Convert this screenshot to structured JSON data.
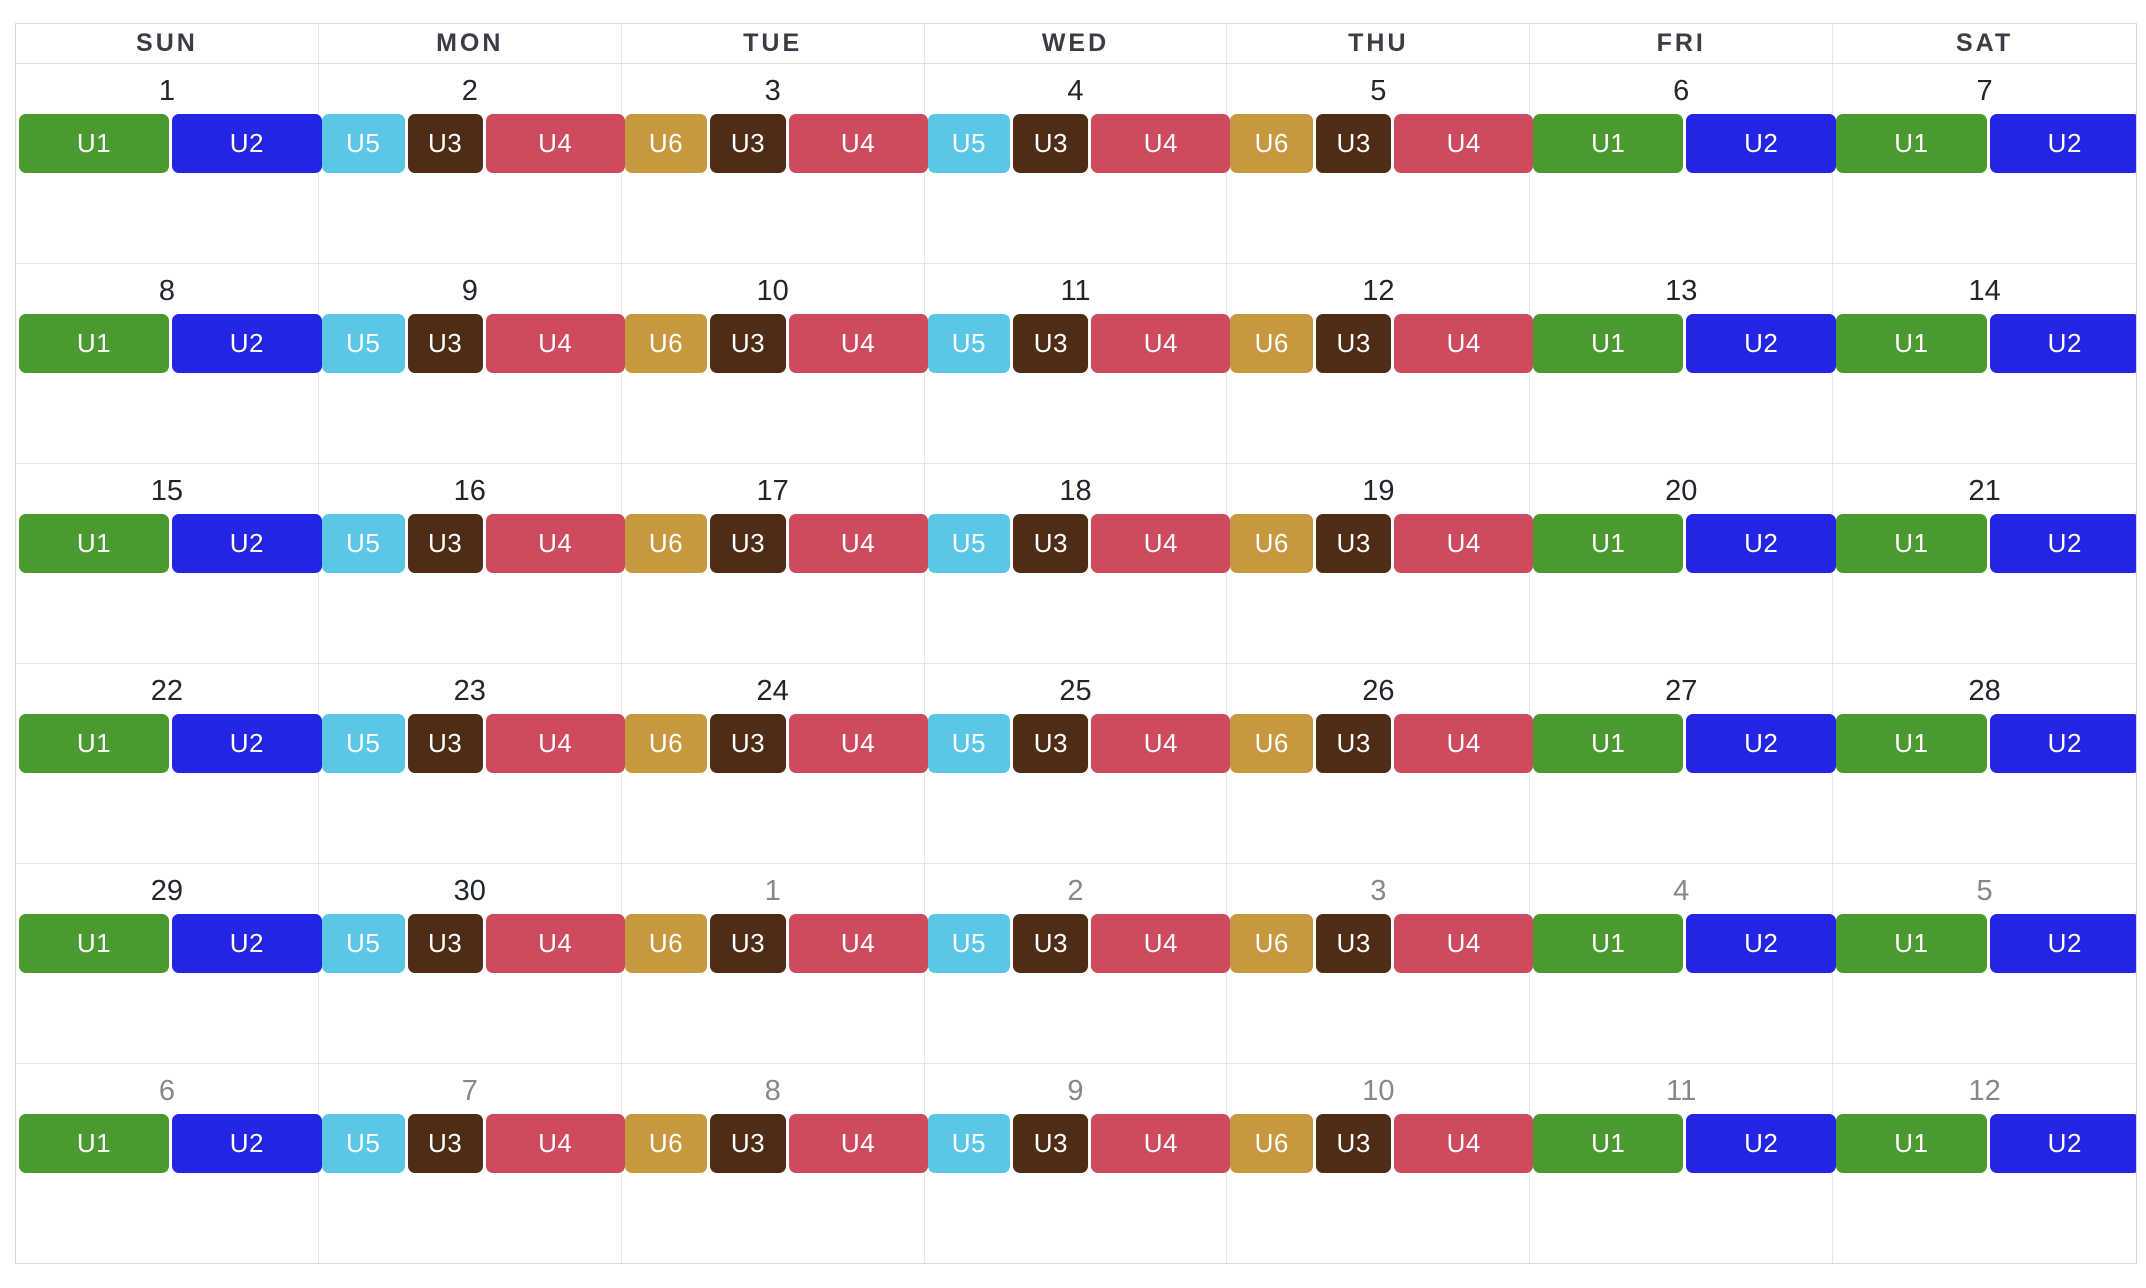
{
  "weekday_headers": [
    "SUN",
    "MON",
    "TUE",
    "WED",
    "THU",
    "FRI",
    "SAT"
  ],
  "event_colors": {
    "U1": "#4a9a2f",
    "U2": "#2324e4",
    "U3": "#4f2c16",
    "U4": "#ce4a5f",
    "U5": "#5ac7e7",
    "U6": "#c7993e"
  },
  "event_patterns": {
    "SUN": [
      {
        "label": "U1",
        "flex": 1
      },
      {
        "label": "U2",
        "flex": 1
      }
    ],
    "MON": [
      {
        "label": "U5",
        "flex": 1.1
      },
      {
        "label": "U3",
        "flex": 1
      },
      {
        "label": "U4",
        "flex": 1.85
      }
    ],
    "TUE": [
      {
        "label": "U6",
        "flex": 1.1
      },
      {
        "label": "U3",
        "flex": 1
      },
      {
        "label": "U4",
        "flex": 1.85
      }
    ],
    "WED": [
      {
        "label": "U5",
        "flex": 1.1
      },
      {
        "label": "U3",
        "flex": 1
      },
      {
        "label": "U4",
        "flex": 1.85
      }
    ],
    "THU": [
      {
        "label": "U6",
        "flex": 1.1
      },
      {
        "label": "U3",
        "flex": 1
      },
      {
        "label": "U4",
        "flex": 1.85
      }
    ],
    "FRI": [
      {
        "label": "U1",
        "flex": 1
      },
      {
        "label": "U2",
        "flex": 1
      }
    ],
    "SAT": [
      {
        "label": "U1",
        "flex": 1
      },
      {
        "label": "U2",
        "flex": 1
      }
    ]
  },
  "weeks": [
    {
      "days": [
        {
          "date": "1",
          "other_month": false
        },
        {
          "date": "2",
          "other_month": false
        },
        {
          "date": "3",
          "other_month": false
        },
        {
          "date": "4",
          "other_month": false
        },
        {
          "date": "5",
          "other_month": false
        },
        {
          "date": "6",
          "other_month": false
        },
        {
          "date": "7",
          "other_month": false
        }
      ]
    },
    {
      "days": [
        {
          "date": "8",
          "other_month": false
        },
        {
          "date": "9",
          "other_month": false
        },
        {
          "date": "10",
          "other_month": false
        },
        {
          "date": "11",
          "other_month": false
        },
        {
          "date": "12",
          "other_month": false
        },
        {
          "date": "13",
          "other_month": false
        },
        {
          "date": "14",
          "other_month": false
        }
      ]
    },
    {
      "days": [
        {
          "date": "15",
          "other_month": false
        },
        {
          "date": "16",
          "other_month": false
        },
        {
          "date": "17",
          "other_month": false
        },
        {
          "date": "18",
          "other_month": false
        },
        {
          "date": "19",
          "other_month": false
        },
        {
          "date": "20",
          "other_month": false
        },
        {
          "date": "21",
          "other_month": false
        }
      ]
    },
    {
      "days": [
        {
          "date": "22",
          "other_month": false
        },
        {
          "date": "23",
          "other_month": false
        },
        {
          "date": "24",
          "other_month": false
        },
        {
          "date": "25",
          "other_month": false
        },
        {
          "date": "26",
          "other_month": false
        },
        {
          "date": "27",
          "other_month": false
        },
        {
          "date": "28",
          "other_month": false
        }
      ]
    },
    {
      "days": [
        {
          "date": "29",
          "other_month": false
        },
        {
          "date": "30",
          "other_month": false
        },
        {
          "date": "1",
          "other_month": true
        },
        {
          "date": "2",
          "other_month": true
        },
        {
          "date": "3",
          "other_month": true
        },
        {
          "date": "4",
          "other_month": true
        },
        {
          "date": "5",
          "other_month": true
        }
      ]
    },
    {
      "days": [
        {
          "date": "6",
          "other_month": true
        },
        {
          "date": "7",
          "other_month": true
        },
        {
          "date": "8",
          "other_month": true
        },
        {
          "date": "9",
          "other_month": true
        },
        {
          "date": "10",
          "other_month": true
        },
        {
          "date": "11",
          "other_month": true
        },
        {
          "date": "12",
          "other_month": true
        }
      ]
    }
  ]
}
